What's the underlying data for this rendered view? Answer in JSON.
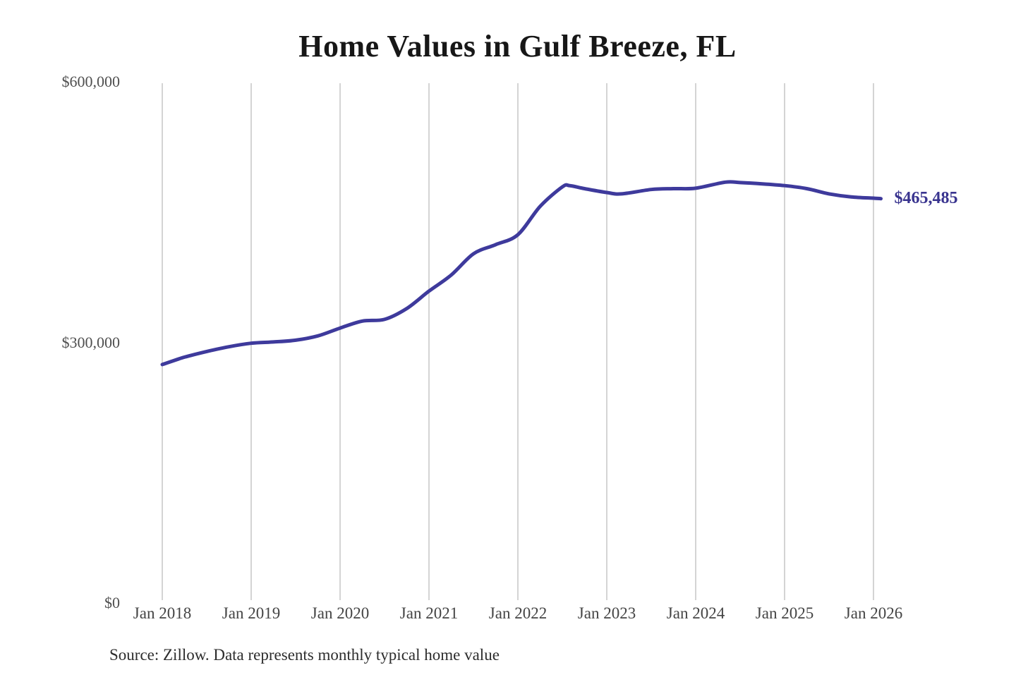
{
  "figure": {
    "background": "#ffffff"
  },
  "chart_data": {
    "type": "line",
    "title": "Home Values in Gulf Breeze, FL",
    "source": "Source: Zillow. Data represents monthly typical home value",
    "end_label": "$465,485",
    "final_value": 465485,
    "xlabel": "",
    "ylabel": "",
    "ylim": [
      0,
      600000
    ],
    "grid": "vertical-only",
    "legend": "none",
    "line_color": "#3e3a9c",
    "end_label_color": "#39348f",
    "gridline_color": "#d4d4d4",
    "x_ticks": [
      "Jan 2018",
      "Jan 2019",
      "Jan 2020",
      "Jan 2021",
      "Jan 2022",
      "Jan 2023",
      "Jan 2024",
      "Jan 2025",
      "Jan 2026"
    ],
    "y_ticks": [
      {
        "label": "$0",
        "value": 0
      },
      {
        "label": "$300,000",
        "value": 300000
      },
      {
        "label": "$600,000",
        "value": 600000
      }
    ],
    "series": [
      {
        "name": "Typical home value",
        "points": [
          {
            "date": "2018-01",
            "value": 274500
          },
          {
            "date": "2018-04",
            "value": 283000
          },
          {
            "date": "2018-07",
            "value": 289500
          },
          {
            "date": "2018-10",
            "value": 295000
          },
          {
            "date": "2019-01",
            "value": 299000
          },
          {
            "date": "2019-04",
            "value": 300500
          },
          {
            "date": "2019-07",
            "value": 302500
          },
          {
            "date": "2019-10",
            "value": 307500
          },
          {
            "date": "2020-01",
            "value": 316500
          },
          {
            "date": "2020-04",
            "value": 324500
          },
          {
            "date": "2020-07",
            "value": 326500
          },
          {
            "date": "2020-10",
            "value": 339000
          },
          {
            "date": "2021-01",
            "value": 359000
          },
          {
            "date": "2021-04",
            "value": 377500
          },
          {
            "date": "2021-07",
            "value": 402000
          },
          {
            "date": "2021-10",
            "value": 412500
          },
          {
            "date": "2022-01",
            "value": 424000
          },
          {
            "date": "2022-04",
            "value": 456500
          },
          {
            "date": "2022-07",
            "value": 479000
          },
          {
            "date": "2022-08",
            "value": 480500
          },
          {
            "date": "2022-10",
            "value": 477000
          },
          {
            "date": "2023-01",
            "value": 472500
          },
          {
            "date": "2023-03",
            "value": 471000
          },
          {
            "date": "2023-07",
            "value": 476000
          },
          {
            "date": "2023-10",
            "value": 477000
          },
          {
            "date": "2024-01",
            "value": 477500
          },
          {
            "date": "2024-05",
            "value": 484500
          },
          {
            "date": "2024-07",
            "value": 484000
          },
          {
            "date": "2024-10",
            "value": 482500
          },
          {
            "date": "2025-01",
            "value": 480500
          },
          {
            "date": "2025-04",
            "value": 477000
          },
          {
            "date": "2025-07",
            "value": 471000
          },
          {
            "date": "2025-10",
            "value": 467500
          },
          {
            "date": "2026-01",
            "value": 466000
          },
          {
            "date": "2026-02",
            "value": 465485
          }
        ]
      }
    ]
  }
}
